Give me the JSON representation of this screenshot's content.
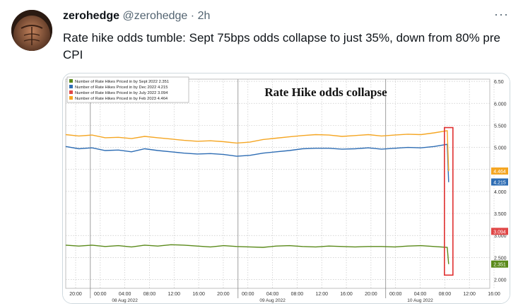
{
  "tweet": {
    "display_name": "zerohedge",
    "handle": "@zerohedge",
    "separator": "·",
    "time": "2h",
    "more_label": "···",
    "text": "Rate hike odds tumble: Sept 75bps odds collapse to just 35%, down from 80% pre CPI"
  },
  "chart_data": {
    "type": "line",
    "title": "Rate Hike odds collapse",
    "ylim": [
      1.8,
      6.55
    ],
    "y_ticks": [
      2.0,
      2.5,
      3.0,
      3.5,
      4.0,
      4.5,
      5.0,
      5.5,
      6.0,
      6.5
    ],
    "y_tick_labels": [
      "2.000",
      "2.500",
      "3.000",
      "3.500",
      "4.000",
      "4.500",
      "5.000",
      "5.500",
      "6.000",
      "6.50"
    ],
    "x_tick_labels": [
      "20:00",
      "00:00",
      "04:00",
      "08:00",
      "12:00",
      "16:00",
      "20:00",
      "00:00",
      "04:00",
      "08:00",
      "12:00",
      "16:00",
      "20:00",
      "00:00",
      "04:00",
      "08:00",
      "12:00",
      "16:00"
    ],
    "date_labels": [
      "08 Aug 2022",
      "09 Aug 2022",
      "10 Aug 2022"
    ],
    "grid": true,
    "legend_position": "top-left",
    "series": [
      {
        "name": "Number of Rate Hikes Priced in by Sept 2022",
        "last_value": "2.351",
        "color": "#5a8a1a",
        "values": [
          2.78,
          2.76,
          2.78,
          2.75,
          2.77,
          2.74,
          2.78,
          2.76,
          2.79,
          2.78,
          2.76,
          2.74,
          2.77,
          2.75,
          2.74,
          2.73,
          2.76,
          2.77,
          2.75,
          2.74,
          2.76,
          2.75,
          2.74,
          2.75,
          2.75,
          2.74,
          2.76,
          2.77,
          2.75,
          2.73,
          2.35
        ]
      },
      {
        "name": "Number of Rate Hikes Priced in by Dec 2022",
        "last_value": "4.215",
        "color": "#2e6db4",
        "values": [
          5.02,
          4.97,
          4.99,
          4.93,
          4.94,
          4.9,
          4.97,
          4.93,
          4.9,
          4.87,
          4.85,
          4.86,
          4.84,
          4.8,
          4.82,
          4.87,
          4.9,
          4.93,
          4.97,
          4.98,
          4.98,
          4.96,
          4.97,
          4.99,
          4.96,
          4.98,
          5.0,
          4.99,
          5.02,
          5.07,
          4.21
        ]
      },
      {
        "name": "Number of Rate Hikes Priced in by July 2022",
        "last_value": "3.094",
        "color": "#e04646",
        "values": []
      },
      {
        "name": "Number of Rate Hikes Priced in by Feb 2023",
        "last_value": "4.464",
        "color": "#f5a623",
        "values": [
          5.29,
          5.26,
          5.28,
          5.22,
          5.23,
          5.2,
          5.25,
          5.22,
          5.19,
          5.16,
          5.14,
          5.15,
          5.13,
          5.1,
          5.12,
          5.18,
          5.21,
          5.24,
          5.27,
          5.29,
          5.28,
          5.25,
          5.27,
          5.29,
          5.26,
          5.28,
          5.3,
          5.29,
          5.33,
          5.38,
          4.46
        ]
      }
    ]
  },
  "colors": {
    "accent": "#1d9bf0",
    "text": "#0f1419",
    "muted": "#536471",
    "highlight_box": "#e03030"
  }
}
